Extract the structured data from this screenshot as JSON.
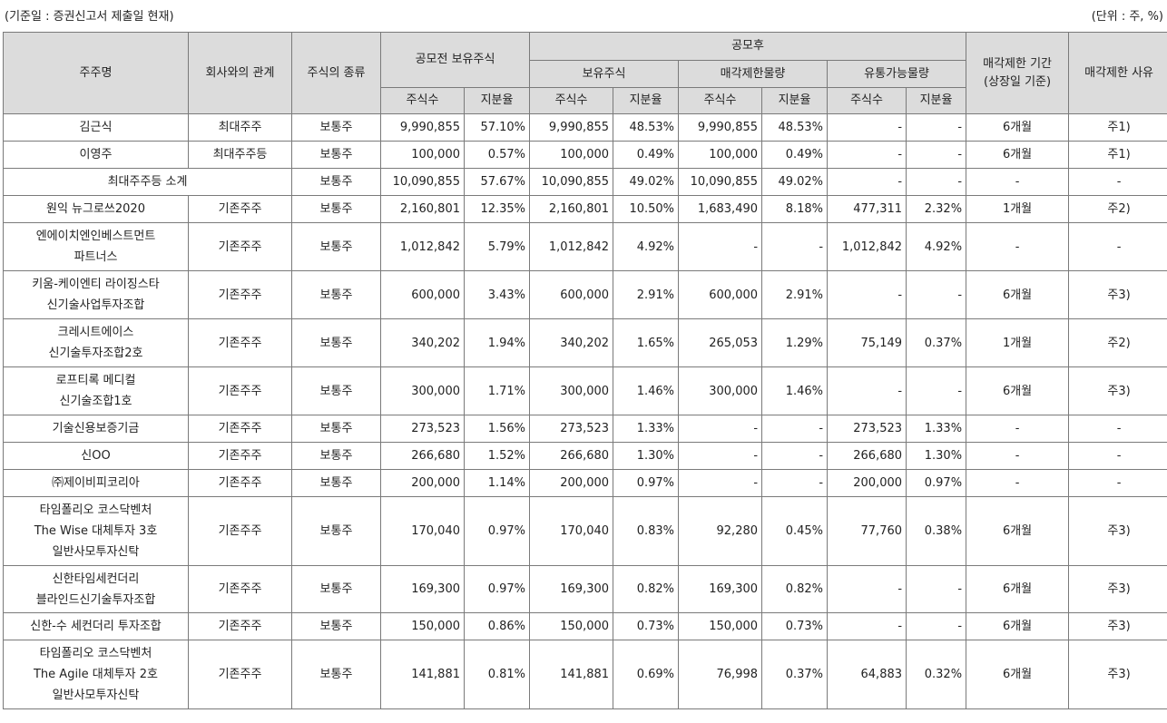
{
  "caption": {
    "left": "(기준일 : 증권신고서 제출일 현재)",
    "right": "(단위 : 주, %)"
  },
  "header": {
    "holder": "주주명",
    "relation": "회사와의 관계",
    "stock_type": "주식의 종류",
    "pre_ipo": "공모전 보유주식",
    "post_ipo": "공모후",
    "holding": "보유주식",
    "restricted": "매각제한물량",
    "tradable": "유통가능물량",
    "lockup_period": [
      "매각제한 기간",
      "(상장일 기준)"
    ],
    "lockup_reason": "매각제한 사유",
    "shares": "주식수",
    "ratio": "지분율"
  },
  "rows": [
    {
      "name": [
        "김근식"
      ],
      "rel": "최대주주",
      "type": "보통주",
      "pre_s": "9,990,855",
      "pre_r": "57.10%",
      "hold_s": "9,990,855",
      "hold_r": "48.53%",
      "res_s": "9,990,855",
      "res_r": "48.53%",
      "tr_s": "-",
      "tr_r": "-",
      "period": "6개월",
      "reason": "주1)"
    },
    {
      "name": [
        "이영주"
      ],
      "rel": "최대주주등",
      "type": "보통주",
      "pre_s": "100,000",
      "pre_r": "0.57%",
      "hold_s": "100,000",
      "hold_r": "0.49%",
      "res_s": "100,000",
      "res_r": "0.49%",
      "tr_s": "-",
      "tr_r": "-",
      "period": "6개월",
      "reason": "주1)"
    },
    {
      "name": [
        "최대주주등 소계"
      ],
      "rel": "",
      "type": "보통주",
      "pre_s": "10,090,855",
      "pre_r": "57.67%",
      "hold_s": "10,090,855",
      "hold_r": "49.02%",
      "res_s": "10,090,855",
      "res_r": "49.02%",
      "tr_s": "-",
      "tr_r": "-",
      "period": "-",
      "reason": "-"
    },
    {
      "name": [
        "원익 뉴그로쓰2020"
      ],
      "rel": "기존주주",
      "type": "보통주",
      "pre_s": "2,160,801",
      "pre_r": "12.35%",
      "hold_s": "2,160,801",
      "hold_r": "10.50%",
      "res_s": "1,683,490",
      "res_r": "8.18%",
      "tr_s": "477,311",
      "tr_r": "2.32%",
      "period": "1개월",
      "reason": "주2)"
    },
    {
      "name": [
        "엔에이치엔인베스트먼트",
        "파트너스"
      ],
      "rel": "기존주주",
      "type": "보통주",
      "pre_s": "1,012,842",
      "pre_r": "5.79%",
      "hold_s": "1,012,842",
      "hold_r": "4.92%",
      "res_s": "-",
      "res_r": "-",
      "tr_s": "1,012,842",
      "tr_r": "4.92%",
      "period": "-",
      "reason": "-"
    },
    {
      "name": [
        "키움-케이엔티 라이징스타",
        "신기술사업투자조합"
      ],
      "rel": "기존주주",
      "type": "보통주",
      "pre_s": "600,000",
      "pre_r": "3.43%",
      "hold_s": "600,000",
      "hold_r": "2.91%",
      "res_s": "600,000",
      "res_r": "2.91%",
      "tr_s": "-",
      "tr_r": "-",
      "period": "6개월",
      "reason": "주3)"
    },
    {
      "name": [
        "크레시트에이스",
        "신기술투자조합2호"
      ],
      "rel": "기존주주",
      "type": "보통주",
      "pre_s": "340,202",
      "pre_r": "1.94%",
      "hold_s": "340,202",
      "hold_r": "1.65%",
      "res_s": "265,053",
      "res_r": "1.29%",
      "tr_s": "75,149",
      "tr_r": "0.37%",
      "period": "1개월",
      "reason": "주2)"
    },
    {
      "name": [
        "로프티록 메디컬",
        "신기술조합1호"
      ],
      "rel": "기존주주",
      "type": "보통주",
      "pre_s": "300,000",
      "pre_r": "1.71%",
      "hold_s": "300,000",
      "hold_r": "1.46%",
      "res_s": "300,000",
      "res_r": "1.46%",
      "tr_s": "-",
      "tr_r": "-",
      "period": "6개월",
      "reason": "주3)"
    },
    {
      "name": [
        "기술신용보증기금"
      ],
      "rel": "기존주주",
      "type": "보통주",
      "pre_s": "273,523",
      "pre_r": "1.56%",
      "hold_s": "273,523",
      "hold_r": "1.33%",
      "res_s": "-",
      "res_r": "-",
      "tr_s": "273,523",
      "tr_r": "1.33%",
      "period": "-",
      "reason": "-"
    },
    {
      "name": [
        "신OO"
      ],
      "rel": "기존주주",
      "type": "보통주",
      "pre_s": "266,680",
      "pre_r": "1.52%",
      "hold_s": "266,680",
      "hold_r": "1.30%",
      "res_s": "-",
      "res_r": "-",
      "tr_s": "266,680",
      "tr_r": "1.30%",
      "period": "-",
      "reason": "-"
    },
    {
      "name": [
        "㈜제이비피코리아"
      ],
      "rel": "기존주주",
      "type": "보통주",
      "pre_s": "200,000",
      "pre_r": "1.14%",
      "hold_s": "200,000",
      "hold_r": "0.97%",
      "res_s": "-",
      "res_r": "-",
      "tr_s": "200,000",
      "tr_r": "0.97%",
      "period": "-",
      "reason": "-"
    },
    {
      "name": [
        "타임폴리오 코스닥벤처",
        "The Wise 대체투자 3호",
        "일반사모투자신탁"
      ],
      "rel": "기존주주",
      "type": "보통주",
      "pre_s": "170,040",
      "pre_r": "0.97%",
      "hold_s": "170,040",
      "hold_r": "0.83%",
      "res_s": "92,280",
      "res_r": "0.45%",
      "tr_s": "77,760",
      "tr_r": "0.38%",
      "period": "6개월",
      "reason": "주3)"
    },
    {
      "name": [
        "신한타임세컨더리",
        "블라인드신기술투자조합"
      ],
      "rel": "기존주주",
      "type": "보통주",
      "pre_s": "169,300",
      "pre_r": "0.97%",
      "hold_s": "169,300",
      "hold_r": "0.82%",
      "res_s": "169,300",
      "res_r": "0.82%",
      "tr_s": "-",
      "tr_r": "-",
      "period": "6개월",
      "reason": "주3)"
    },
    {
      "name": [
        "신한-수 세컨더리 투자조합"
      ],
      "rel": "기존주주",
      "type": "보통주",
      "pre_s": "150,000",
      "pre_r": "0.86%",
      "hold_s": "150,000",
      "hold_r": "0.73%",
      "res_s": "150,000",
      "res_r": "0.73%",
      "tr_s": "-",
      "tr_r": "-",
      "period": "6개월",
      "reason": "주3)"
    },
    {
      "name": [
        "타임폴리오 코스닥벤처",
        "The Agile 대체투자 2호",
        "일반사모투자신탁"
      ],
      "rel": "기존주주",
      "type": "보통주",
      "pre_s": "141,881",
      "pre_r": "0.81%",
      "hold_s": "141,881",
      "hold_r": "0.69%",
      "res_s": "76,998",
      "res_r": "0.37%",
      "tr_s": "64,883",
      "tr_r": "0.32%",
      "period": "6개월",
      "reason": "주3)"
    }
  ]
}
